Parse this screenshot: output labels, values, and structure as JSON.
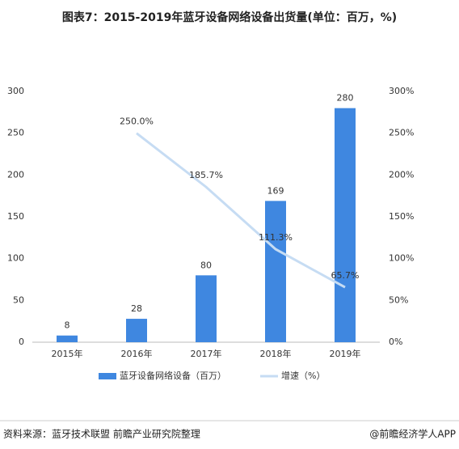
{
  "chart_data": {
    "type": "bar",
    "title": "图表7：2015-2019年蓝牙设备网络设备出货量(单位：百万，%)",
    "categories": [
      "2015年",
      "2016年",
      "2017年",
      "2018年",
      "2019年"
    ],
    "series": [
      {
        "name": "蓝牙设备网络设备（百万）",
        "type": "bar",
        "color": "#3f87e0",
        "values": [
          8,
          28,
          80,
          169,
          280
        ]
      },
      {
        "name": "增速（%）",
        "type": "line",
        "axis": "y2",
        "color": "#c6dcf3",
        "values": [
          null,
          250.0,
          185.7,
          111.3,
          65.7
        ],
        "value_labels": [
          null,
          "250.0%",
          "185.7%",
          "111.3%",
          "65.7%"
        ]
      }
    ],
    "ylim": [
      0,
      300
    ],
    "yticks": [
      0,
      50,
      100,
      150,
      200,
      250,
      300
    ],
    "y2lim": [
      0,
      300
    ],
    "y2ticks": [
      {
        "value": 0,
        "label": "0%"
      },
      {
        "value": 50,
        "label": "50%"
      },
      {
        "value": 100,
        "label": "100%"
      },
      {
        "value": 150,
        "label": "150%"
      },
      {
        "value": 200,
        "label": "200%"
      },
      {
        "value": 250,
        "label": "250%"
      },
      {
        "value": 300,
        "label": "300%"
      }
    ],
    "legend": "bottom",
    "source": "资料来源：蓝牙技术联盟 前瞻产业研究院整理",
    "credit": "@前瞻经济学人APP"
  }
}
